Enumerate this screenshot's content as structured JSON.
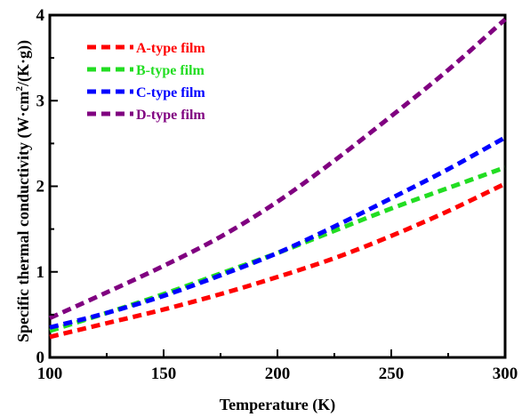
{
  "chart_data": {
    "type": "line",
    "title": "",
    "xlabel": "Temperature (K)",
    "ylabel": {
      "main": "Specific thermal conductivity (W·cm",
      "sup": "2",
      "end": "/(K·g))"
    },
    "xlim": [
      100,
      300
    ],
    "ylim": [
      0,
      4
    ],
    "x_ticks": [
      "100",
      "150",
      "200",
      "250",
      "300"
    ],
    "y_ticks": [
      "0",
      "1",
      "2",
      "3",
      "4"
    ],
    "legend_position": "top-left",
    "x": [
      100,
      125,
      150,
      175,
      200,
      225,
      250,
      275,
      300
    ],
    "series": [
      {
        "name": "A-type film",
        "color": "#ff0000",
        "values": [
          0.24,
          0.4,
          0.56,
          0.74,
          0.94,
          1.16,
          1.42,
          1.71,
          2.03
        ]
      },
      {
        "name": "B-type film",
        "color": "#22dd22",
        "values": [
          0.31,
          0.52,
          0.74,
          0.98,
          1.22,
          1.48,
          1.74,
          1.98,
          2.22
        ]
      },
      {
        "name": "C-type film",
        "color": "#0000ff",
        "values": [
          0.35,
          0.52,
          0.72,
          0.96,
          1.22,
          1.53,
          1.86,
          2.2,
          2.57
        ]
      },
      {
        "name": "D-type film",
        "color": "#800080",
        "values": [
          0.46,
          0.76,
          1.07,
          1.41,
          1.82,
          2.3,
          2.82,
          3.36,
          3.95
        ]
      }
    ]
  }
}
